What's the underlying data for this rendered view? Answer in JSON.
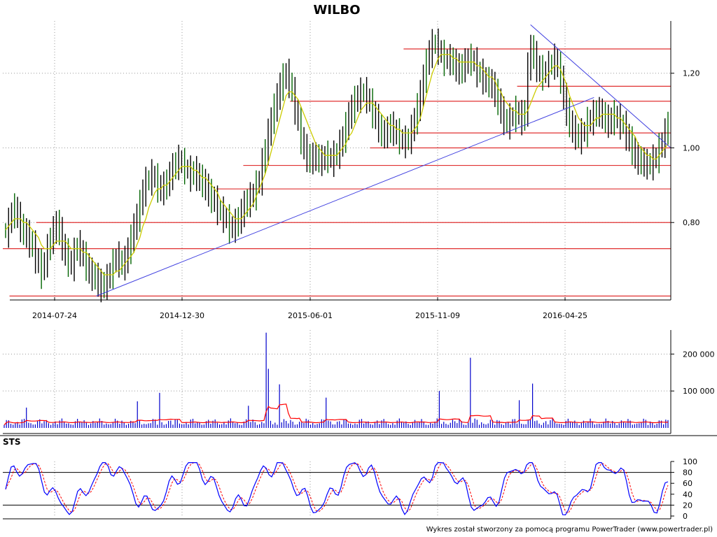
{
  "title": "WILBO",
  "credit": "Wykres został stworzony za pomocą programu PowerTrader (www.powertrader.pl)",
  "colors": {
    "price": "#006400",
    "price_dark": "#000000",
    "ma": "#cccc00",
    "support": "#e03030",
    "trend": "#4040e0",
    "volume": "#0000cc",
    "volume_ma": "#ff0000",
    "sts_k": "#0000ff",
    "sts_d": "#ff0000",
    "grid": "#999999"
  },
  "chart_data": [
    {
      "name": "price",
      "type": "candlestick",
      "x_tick_labels": [
        "2014-07-24",
        "2014-12-30",
        "2015-06-01",
        "2015-11-09",
        "2016-04-25"
      ],
      "y_tick_labels": [
        "1,20",
        "1,00",
        "0,80"
      ],
      "y_ticks": [
        1.2,
        1.0,
        0.8
      ],
      "ylim": [
        0.6,
        1.34
      ],
      "grid": true,
      "close": [
        0.78,
        0.8,
        0.83,
        0.84,
        0.82,
        0.79,
        0.78,
        0.77,
        0.75,
        0.74,
        0.71,
        0.69,
        0.67,
        0.7,
        0.73,
        0.76,
        0.78,
        0.8,
        0.78,
        0.74,
        0.72,
        0.7,
        0.69,
        0.72,
        0.74,
        0.73,
        0.71,
        0.69,
        0.67,
        0.66,
        0.66,
        0.64,
        0.63,
        0.64,
        0.65,
        0.67,
        0.69,
        0.71,
        0.7,
        0.69,
        0.7,
        0.73,
        0.76,
        0.79,
        0.82,
        0.85,
        0.89,
        0.91,
        0.92,
        0.93,
        0.92,
        0.9,
        0.89,
        0.9,
        0.91,
        0.93,
        0.95,
        0.96,
        0.97,
        0.96,
        0.95,
        0.94,
        0.93,
        0.94,
        0.93,
        0.92,
        0.91,
        0.9,
        0.88,
        0.87,
        0.86,
        0.84,
        0.83,
        0.82,
        0.81,
        0.79,
        0.79,
        0.8,
        0.81,
        0.83,
        0.85,
        0.86,
        0.87,
        0.88,
        0.9,
        0.92,
        0.96,
        1.0,
        1.04,
        1.08,
        1.11,
        1.14,
        1.17,
        1.19,
        1.2,
        1.18,
        1.15,
        1.11,
        1.07,
        1.03,
        1.0,
        0.98,
        0.97,
        0.98,
        0.98,
        0.97,
        0.97,
        0.98,
        0.98,
        0.97,
        0.98,
        0.99,
        1.01,
        1.03,
        1.06,
        1.09,
        1.11,
        1.13,
        1.14,
        1.15,
        1.15,
        1.14,
        1.12,
        1.1,
        1.08,
        1.06,
        1.04,
        1.04,
        1.05,
        1.06,
        1.05,
        1.04,
        1.03,
        1.02,
        1.02,
        1.03,
        1.05,
        1.08,
        1.11,
        1.15,
        1.19,
        1.23,
        1.26,
        1.28,
        1.28,
        1.27,
        1.25,
        1.24,
        1.24,
        1.24,
        1.23,
        1.22,
        1.21,
        1.22,
        1.23,
        1.24,
        1.24,
        1.23,
        1.21,
        1.2,
        1.19,
        1.18,
        1.18,
        1.17,
        1.15,
        1.13,
        1.1,
        1.08,
        1.07,
        1.08,
        1.09,
        1.1,
        1.09,
        1.08,
        1.1,
        1.22,
        1.27,
        1.25,
        1.22,
        1.21,
        1.2,
        1.21,
        1.22,
        1.23,
        1.24,
        1.22,
        1.19,
        1.14,
        1.1,
        1.07,
        1.05,
        1.04,
        1.03,
        1.04,
        1.05,
        1.07,
        1.08,
        1.09,
        1.1,
        1.1,
        1.09,
        1.08,
        1.07,
        1.08,
        1.09,
        1.08,
        1.07,
        1.06,
        1.04,
        1.02,
        1.0,
        0.98,
        0.97,
        0.97,
        0.96,
        0.96,
        0.96,
        0.97,
        0.98,
        1.0,
        1.02,
        1.04,
        1.07
      ],
      "ma": [
        0.78,
        0.79,
        0.8,
        0.81,
        0.81,
        0.81,
        0.8,
        0.8,
        0.79,
        0.78,
        0.77,
        0.76,
        0.74,
        0.73,
        0.73,
        0.73,
        0.74,
        0.75,
        0.75,
        0.75,
        0.75,
        0.74,
        0.73,
        0.73,
        0.73,
        0.73,
        0.72,
        0.72,
        0.71,
        0.7,
        0.69,
        0.68,
        0.67,
        0.66,
        0.66,
        0.66,
        0.66,
        0.67,
        0.67,
        0.68,
        0.69,
        0.7,
        0.71,
        0.72,
        0.74,
        0.76,
        0.79,
        0.81,
        0.84,
        0.86,
        0.88,
        0.89,
        0.89,
        0.9,
        0.9,
        0.91,
        0.92,
        0.93,
        0.94,
        0.95,
        0.95,
        0.95,
        0.95,
        0.94,
        0.94,
        0.93,
        0.92,
        0.92,
        0.91,
        0.9,
        0.89,
        0.88,
        0.86,
        0.85,
        0.84,
        0.83,
        0.82,
        0.81,
        0.81,
        0.81,
        0.82,
        0.83,
        0.84,
        0.85,
        0.87,
        0.89,
        0.91,
        0.93,
        0.96,
        0.99,
        1.02,
        1.05,
        1.08,
        1.11,
        1.14,
        1.15,
        1.15,
        1.14,
        1.13,
        1.11,
        1.09,
        1.07,
        1.05,
        1.03,
        1.01,
        1.0,
        0.99,
        0.98,
        0.98,
        0.98,
        0.98,
        0.98,
        0.99,
        1.0,
        1.01,
        1.03,
        1.04,
        1.06,
        1.08,
        1.1,
        1.11,
        1.12,
        1.12,
        1.12,
        1.11,
        1.1,
        1.09,
        1.08,
        1.07,
        1.06,
        1.06,
        1.05,
        1.05,
        1.04,
        1.04,
        1.04,
        1.04,
        1.05,
        1.06,
        1.08,
        1.11,
        1.14,
        1.17,
        1.2,
        1.22,
        1.24,
        1.25,
        1.25,
        1.25,
        1.25,
        1.24,
        1.24,
        1.23,
        1.23,
        1.23,
        1.23,
        1.23,
        1.23,
        1.22,
        1.22,
        1.21,
        1.2,
        1.19,
        1.19,
        1.18,
        1.16,
        1.15,
        1.13,
        1.12,
        1.11,
        1.1,
        1.1,
        1.09,
        1.09,
        1.09,
        1.1,
        1.12,
        1.14,
        1.16,
        1.17,
        1.18,
        1.19,
        1.2,
        1.21,
        1.22,
        1.22,
        1.21,
        1.19,
        1.17,
        1.14,
        1.12,
        1.1,
        1.08,
        1.07,
        1.06,
        1.06,
        1.06,
        1.07,
        1.08,
        1.08,
        1.09,
        1.09,
        1.09,
        1.09,
        1.09,
        1.08,
        1.08,
        1.07,
        1.06,
        1.05,
        1.04,
        1.03,
        1.01,
        1.0,
        0.99,
        0.98,
        0.98,
        0.97,
        0.97,
        0.98,
        0.99,
        1.0,
        1.01
      ],
      "horizontal_lines": [
        {
          "y": 1.265,
          "x_from": 0.6,
          "x_to": 1.0
        },
        {
          "y": 1.165,
          "x_from": 0.77,
          "x_to": 1.0
        },
        {
          "y": 1.125,
          "x_from": 0.43,
          "x_to": 1.0
        },
        {
          "y": 1.04,
          "x_from": 0.61,
          "x_to": 1.0
        },
        {
          "y": 1.0,
          "x_from": 0.55,
          "x_to": 1.0
        },
        {
          "y": 0.953,
          "x_from": 0.36,
          "x_to": 1.0
        },
        {
          "y": 0.89,
          "x_from": 0.32,
          "x_to": 1.0
        },
        {
          "y": 0.8,
          "x_from": 0.05,
          "x_to": 1.0
        },
        {
          "y": 0.73,
          "x_from": 0.0,
          "x_to": 1.0
        },
        {
          "y": 0.603,
          "x_from": 0.01,
          "x_to": 1.0
        }
      ],
      "trend_lines": [
        {
          "x1": 0.14,
          "y1": 0.603,
          "x2": 0.885,
          "y2": 1.135
        },
        {
          "x1": 0.79,
          "y1": 1.33,
          "x2": 1.0,
          "y2": 1.0
        }
      ]
    },
    {
      "name": "volume",
      "type": "bar",
      "y_tick_labels": [
        "200 000",
        "100 000"
      ],
      "y_ticks": [
        200000,
        100000
      ],
      "ylim": [
        0,
        265000
      ]
    },
    {
      "name": "STS",
      "type": "line",
      "title": "STS",
      "y_tick_labels": [
        "100",
        "80",
        "60",
        "40",
        "20",
        "0"
      ],
      "y_ticks": [
        100,
        80,
        60,
        40,
        20,
        0
      ],
      "ylim": [
        0,
        100
      ],
      "levels": [
        80,
        20
      ]
    }
  ]
}
